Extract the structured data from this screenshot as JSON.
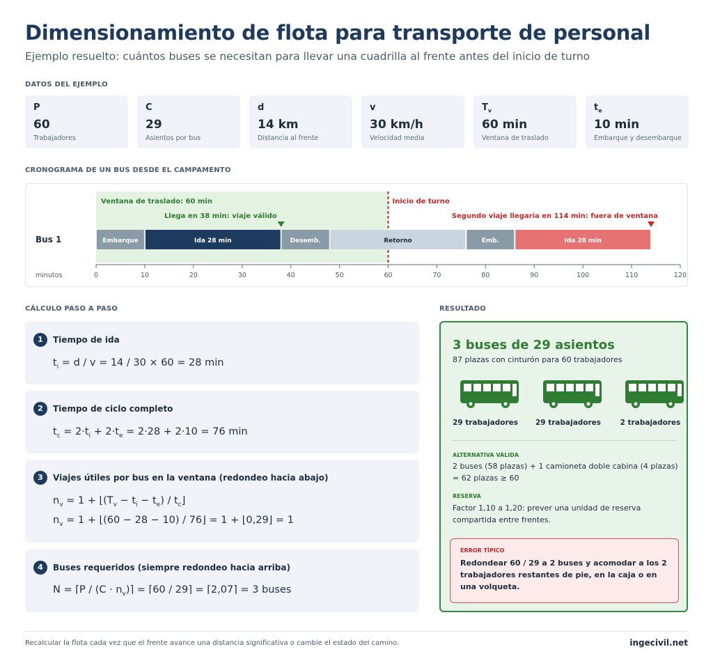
{
  "header": {
    "title": "Dimensionamiento de flota para transporte de personal",
    "subtitle": "Ejemplo resuelto: cuántos buses se necesitan para llevar una cuadrilla al frente antes del inicio de turno"
  },
  "data_section": {
    "label": "DATOS DEL EJEMPLO",
    "cards": [
      {
        "sym": "P",
        "sub": "",
        "value": "60",
        "desc": "Trabajadores"
      },
      {
        "sym": "C",
        "sub": "",
        "value": "29",
        "desc": "Asientos por bus"
      },
      {
        "sym": "d",
        "sub": "",
        "value": "14 km",
        "desc": "Distancia al frente"
      },
      {
        "sym": "v",
        "sub": "",
        "value": "30 km/h",
        "desc": "Velocidad media"
      },
      {
        "sym": "T",
        "sub": "v",
        "value": "60 min",
        "desc": "Ventana de traslado"
      },
      {
        "sym": "t",
        "sub": "e",
        "value": "10 min",
        "desc": "Embarque y desembarque"
      }
    ]
  },
  "timeline": {
    "label": "CRONOGRAMA DE UN BUS DESDE EL CAMPAMENTO",
    "row_label": "Bus 1",
    "axis_label": "minutos",
    "axis_ticks": [
      0,
      10,
      20,
      30,
      40,
      50,
      60,
      70,
      80,
      90,
      100,
      110,
      120
    ],
    "window_end": 60,
    "window_label": "Ventana de traslado: 60 min",
    "shift_label": "Inicio de turno",
    "arrive_label": "Llega en 38 min: viaje válido",
    "arrive_at": 38,
    "second_label": "Segundo viaje llegaría en 114 min: fuera de ventana",
    "second_at": 114,
    "segments": [
      {
        "start": 0,
        "end": 10,
        "label": "Embarque",
        "color": "#8a9ba8",
        "text_color": "#ffffff"
      },
      {
        "start": 10,
        "end": 38,
        "label": "Ida 28 min",
        "color": "#1e3a5f",
        "text_color": "#ffffff"
      },
      {
        "start": 38,
        "end": 48,
        "label": "Desemb.",
        "color": "#8a9ba8",
        "text_color": "#ffffff"
      },
      {
        "start": 48,
        "end": 76,
        "label": "Retorno",
        "color": "#c9d6e1",
        "text_color": "#1f2d3d"
      },
      {
        "start": 76,
        "end": 86,
        "label": "Emb.",
        "color": "#8a9ba8",
        "text_color": "#ffffff"
      },
      {
        "start": 86,
        "end": 114,
        "label": "Ida 28 min",
        "color": "#e57373",
        "text_color": "#ffffff"
      }
    ]
  },
  "calc": {
    "label": "CÁLCULO PASO A PASO",
    "steps": [
      {
        "num": "1",
        "title": "Tiempo de ida"
      },
      {
        "num": "2",
        "title": "Tiempo de ciclo completo"
      },
      {
        "num": "3",
        "title": "Viajes útiles por bus en la ventana (redondeo hacia abajo)"
      },
      {
        "num": "4",
        "title": "Buses requeridos (siempre redondeo hacia arriba)"
      }
    ],
    "eq": {
      "e1a": "t",
      "e1b": "i",
      "e1c": " = d / v = 14 / 30 × 60 = 28 min",
      "e2a": "t",
      "e2b": "c",
      "e2c": " = 2·t",
      "e2d": "i",
      "e2e": " + 2·t",
      "e2f": "e",
      "e2g": " = 2·28 + 2·10 = 76 min",
      "e3a": "n",
      "e3b": "v",
      "e3c": " = 1 + ⌊(T",
      "e3d": "v",
      "e3e": " − t",
      "e3f": "i",
      "e3g": " − t",
      "e3h": "e",
      "e3i": ") / t",
      "e3j": "c",
      "e3k": "⌋",
      "e4a": "n",
      "e4b": "v",
      "e4c": " = 1 + ⌊(60 − 28 − 10) / 76⌋ = 1 + ⌊0,29⌋ = 1",
      "e5a": "N = ⌈P / (C · n",
      "e5b": "v",
      "e5c": ")⌉ = ⌈60 / 29⌉ = ⌈2,07⌉ = 3 buses"
    }
  },
  "result": {
    "label": "RESULTADO",
    "title": "3 buses de 29 asientos",
    "subtitle": "87 plazas con cinturón para 60 trabajadores",
    "buses": [
      {
        "label": "29 trabajadores",
        "icon": "bus-icon"
      },
      {
        "label": "29 trabajadores",
        "icon": "bus-icon"
      },
      {
        "label": "2 trabajadores",
        "icon": "bus-icon"
      }
    ],
    "bus_color": "#2e7d32",
    "alt_label": "ALTERNATIVA VÁLIDA",
    "alt_text": "2 buses (58 plazas) + 1 camioneta doble cabina (4 plazas) = 62 plazas ≥ 60",
    "reserve_label": "RESERVA",
    "reserve_text": "Factor 1,10 a 1,20: prever una unidad de reserva compartida entre frentes.",
    "error_label": "ERROR TÍPICO",
    "error_text": "Redondear 60 / 29 a 2 buses y acomodar a los 2 trabajadores restantes de pie, en la caja o en una volqueta."
  },
  "footer": {
    "note": "Recalcular la flota cada vez que el frente avance una distancia significativa o cambie el estado del camino.",
    "brand": "ingecivil.net"
  }
}
